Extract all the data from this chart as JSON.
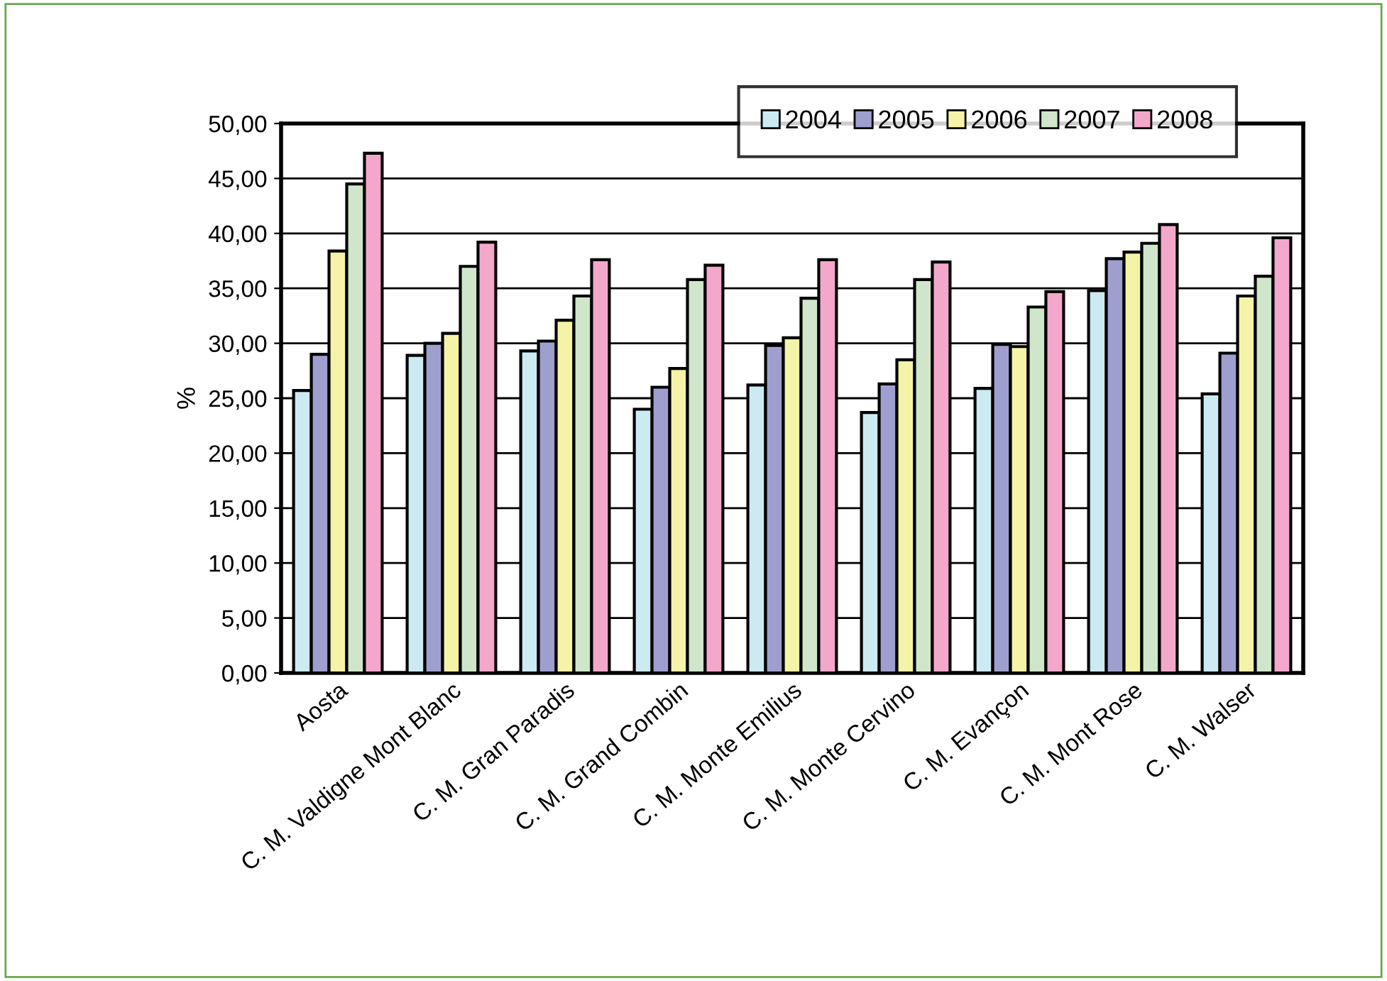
{
  "chart_data": {
    "type": "bar",
    "ylabel": "%",
    "categories": [
      "Aosta",
      "C. M. Valdigne Mont Blanc",
      "C. M. Gran Paradis",
      "C. M. Grand Combin",
      "C. M. Monte Emilius",
      "C. M. Monte Cervino",
      "C. M. Evançon",
      "C. M. Mont Rose",
      "C. M. Walser"
    ],
    "series": [
      {
        "name": "2004",
        "color": "#cceaf2",
        "values": [
          25.7,
          28.9,
          29.3,
          24.0,
          26.2,
          23.7,
          25.9,
          34.8,
          25.4
        ]
      },
      {
        "name": "2005",
        "color": "#9f9fcf",
        "values": [
          29.0,
          30.0,
          30.2,
          26.0,
          29.8,
          26.3,
          29.9,
          37.7,
          29.1
        ]
      },
      {
        "name": "2006",
        "color": "#f5f3a8",
        "values": [
          38.4,
          30.9,
          32.1,
          27.7,
          30.5,
          28.5,
          29.7,
          38.3,
          34.3
        ]
      },
      {
        "name": "2007",
        "color": "#cfe6cb",
        "values": [
          44.5,
          37.0,
          34.3,
          35.8,
          34.1,
          35.8,
          33.3,
          39.1,
          36.1
        ]
      },
      {
        "name": "2008",
        "color": "#f3a8cb",
        "values": [
          47.3,
          39.2,
          37.6,
          37.1,
          37.6,
          37.4,
          34.7,
          40.8,
          39.6
        ]
      }
    ],
    "ylim": [
      0,
      50
    ],
    "yticks": [
      {
        "value": 0,
        "label": "0,00"
      },
      {
        "value": 5,
        "label": "5,00"
      },
      {
        "value": 10,
        "label": "10,00"
      },
      {
        "value": 15,
        "label": "15,00"
      },
      {
        "value": 20,
        "label": "20,00"
      },
      {
        "value": 25,
        "label": "25,00"
      },
      {
        "value": 30,
        "label": "30,00"
      },
      {
        "value": 35,
        "label": "35,00"
      },
      {
        "value": 40,
        "label": "40,00"
      },
      {
        "value": 45,
        "label": "45,00"
      },
      {
        "value": 50,
        "label": "50,00"
      }
    ],
    "grid": "y",
    "legend": "top right"
  }
}
